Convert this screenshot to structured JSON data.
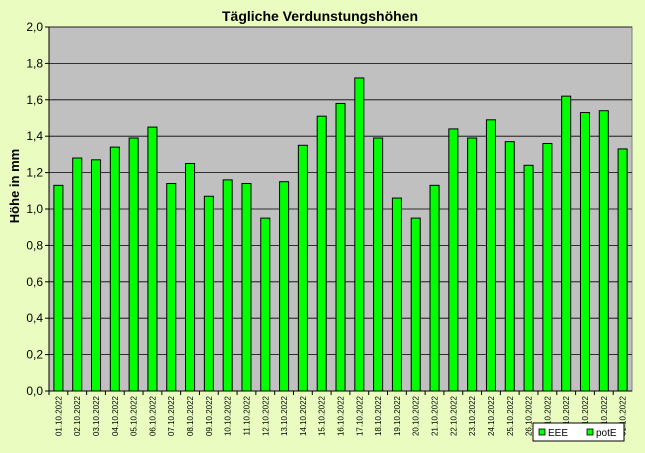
{
  "chart_data": {
    "type": "bar",
    "title": "Tägliche Verdunstungshöhen",
    "ylabel": "Höhe in mm",
    "xlabel": "",
    "ylim": [
      0,
      2.0
    ],
    "yticks": [
      "0,0",
      "0,2",
      "0,4",
      "0,6",
      "0,8",
      "1,0",
      "1,2",
      "1,4",
      "1,6",
      "1,8",
      "2,0"
    ],
    "ytick_values": [
      0,
      0.2,
      0.4,
      0.6,
      0.8,
      1.0,
      1.2,
      1.4,
      1.6,
      1.8,
      2.0
    ],
    "grid": true,
    "legend_position": "bottom-right",
    "categories": [
      "01.10.2022",
      "02.10.2022",
      "03.10.2022",
      "04.10.2022",
      "05.10.2022",
      "06.10.2022",
      "07.10.2022",
      "08.10.2022",
      "09.10.2022",
      "10.10.2022",
      "11.10.2022",
      "12.10.2022",
      "13.10.2022",
      "14.10.2022",
      "15.10.2022",
      "16.10.2022",
      "17.10.2022",
      "18.10.2022",
      "19.10.2022",
      "20.10.2022",
      "21.10.2022",
      "22.10.2022",
      "23.10.2022",
      "24.10.2022",
      "25.10.2022",
      "26.10.2022",
      "27.10.2022",
      "28.10.2022",
      "29.10.2022",
      "30.10.2022",
      "31.10.2022"
    ],
    "series": [
      {
        "name": "EEE",
        "color": "#00ff00",
        "values": [
          1.13,
          1.28,
          1.27,
          1.34,
          1.39,
          1.45,
          1.14,
          1.25,
          1.07,
          1.16,
          1.14,
          0.95,
          1.15,
          1.35,
          1.51,
          1.58,
          1.72,
          1.39,
          1.06,
          0.95,
          1.13,
          1.44,
          1.39,
          1.49,
          1.37,
          1.24,
          1.36,
          1.62,
          1.53,
          1.54,
          1.33
        ]
      }
    ],
    "legend": [
      {
        "label": "EEE",
        "color": "#00ff00"
      },
      {
        "label": "potE",
        "color": "#00ff00"
      }
    ],
    "colors": {
      "background": "#eafcc0",
      "plot_area": "#c0c0c0",
      "bar": "#00ff00",
      "bar_edge": "#000000"
    }
  }
}
